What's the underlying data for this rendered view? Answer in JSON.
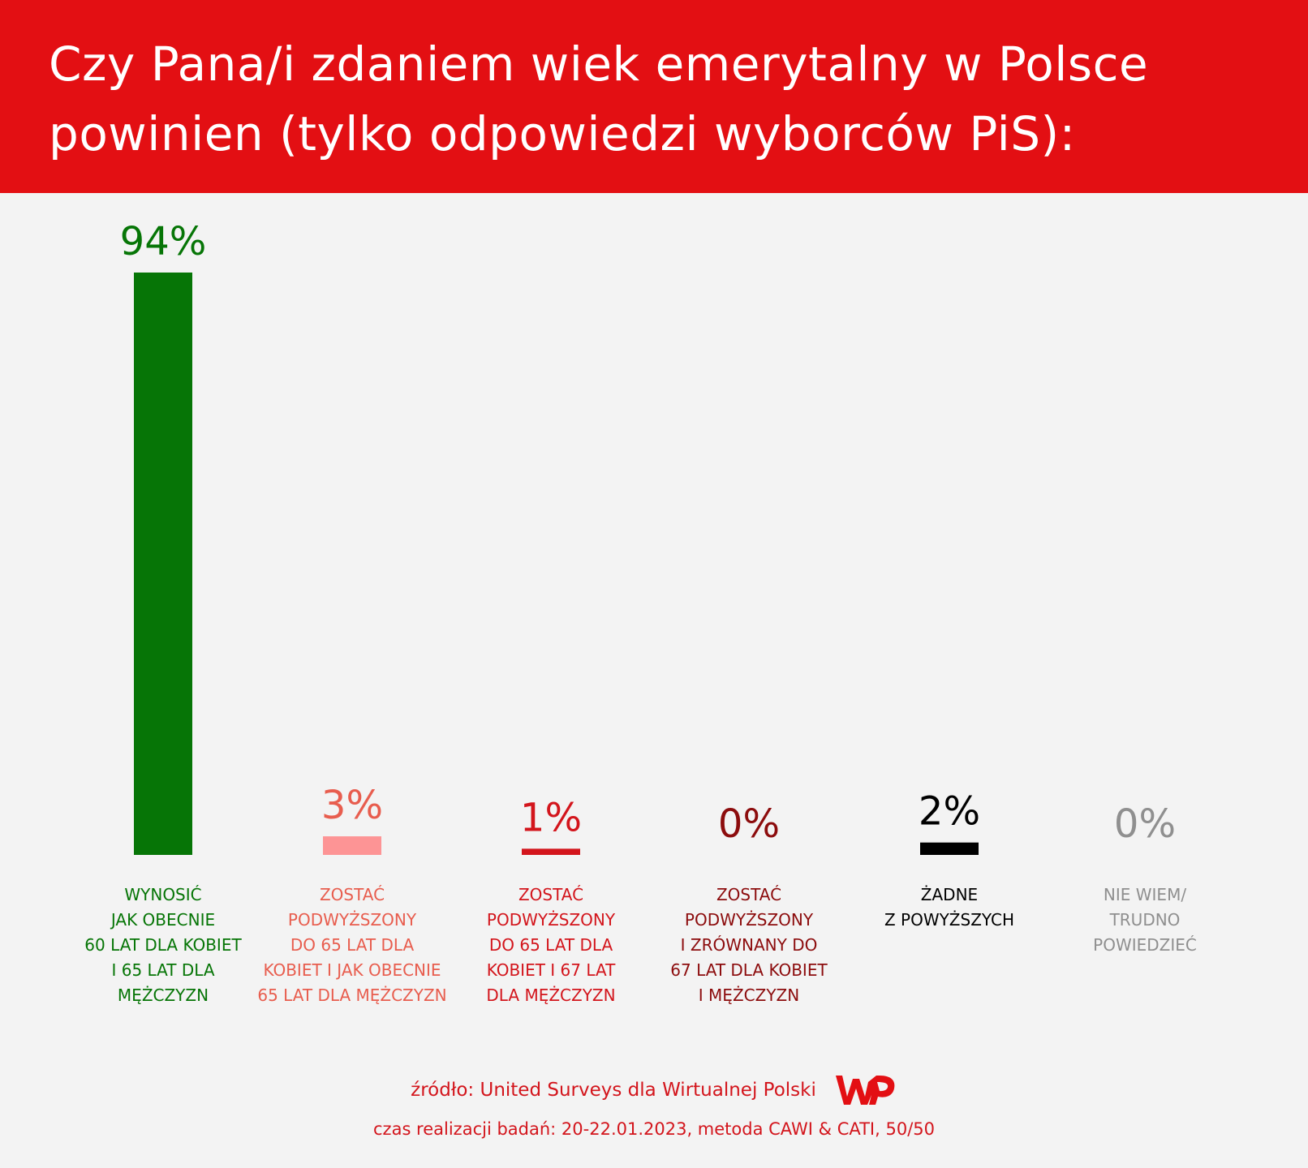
{
  "title_lines": [
    "Czy Pana/i zdaniem wiek emerytalny w Polsce",
    "powinien (tylko odpowiedzi wyborców PiS):"
  ],
  "chart_data": {
    "type": "bar",
    "title": "Czy Pana/i zdaniem wiek emerytalny w Polsce powinien (tylko odpowiedzi wyborców PiS):",
    "categories": [
      "WYNOSIĆ JAK OBECNIE 60 LAT DLA KOBIET I 65 LAT DLA MĘŻCZYZN",
      "ZOSTAĆ PODWYŻSZONY DO 65 LAT DLA KOBIET I JAK OBECNIE 65 LAT DLA MĘŻCZYZN",
      "ZOSTAĆ PODWYŻSZONY DO 65 LAT DLA KOBIET I 67 LAT DLA MĘŻCZYZN",
      "ZOSTAĆ PODWYŻSZONY I ZRÓWNANY DO 67 LAT DLA KOBIET I MĘŻCZYZN",
      "ŻADNE Z POWYŻSZYCH",
      "NIE WIEM/ TRUDNO POWIEDZIEĆ"
    ],
    "category_lines": [
      [
        "WYNOSIĆ",
        "JAK OBECNIE",
        "60 LAT DLA KOBIET",
        "I 65 LAT DLA",
        "MĘŻCZYZN"
      ],
      [
        "ZOSTAĆ",
        "PODWYŻSZONY",
        "DO 65 LAT DLA",
        "KOBIET I JAK OBECNIE",
        "65 LAT DLA MĘŻCZYZN"
      ],
      [
        "ZOSTAĆ",
        "PODWYŻSZONY",
        "DO 65 LAT DLA",
        "KOBIET I 67 LAT",
        "DLA MĘŻCZYZN"
      ],
      [
        "ZOSTAĆ",
        "PODWYŻSZONY",
        "I ZRÓWNANY DO",
        "67 LAT DLA KOBIET",
        "I MĘŻCZYZN"
      ],
      [
        "ŻADNE",
        "Z POWYŻSZYCH"
      ],
      [
        "NIE WIEM/",
        "TRUDNO",
        "POWIEDZIEĆ"
      ]
    ],
    "values": [
      94,
      3,
      1,
      0,
      2,
      0
    ],
    "value_labels": [
      "94%",
      "3%",
      "1%",
      "0%",
      "2%",
      "0%"
    ],
    "colors": [
      "#067506",
      "#fd9495",
      "#d3151c",
      "#8c0c0d",
      "#000000",
      "#8f8f8f"
    ],
    "value_label_colors": [
      "#067506",
      "#e85d4e",
      "#d3151c",
      "#8c0c0d",
      "#000000",
      "#8f8f8f"
    ],
    "ylim": [
      0,
      94
    ],
    "grid": false,
    "legend": "none"
  },
  "footer": {
    "source": "źródło: United Surveys dla Wirtualnej Polski",
    "method": "czas realizacji badań: 20-22.01.2023, metoda CAWI & CATI, 50/50",
    "logo_name": "wp-logo",
    "logo_color": "#e30f13"
  }
}
